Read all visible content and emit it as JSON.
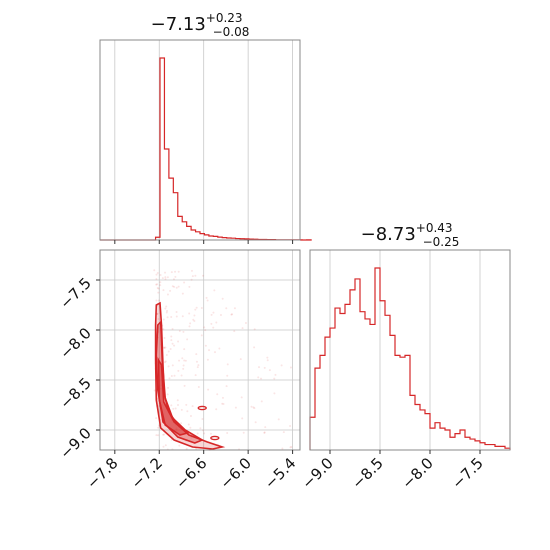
{
  "chart_data": [
    {
      "type": "histogram",
      "panel": "top-left",
      "title_value": "−7.13",
      "title_plus": "+0.23",
      "title_minus": "−0.08",
      "xlim": [
        -8.0,
        -5.3
      ],
      "bin_edges_start": -7.25,
      "bin_width": 0.06,
      "counts": [
        0.015,
        1.0,
        0.5,
        0.34,
        0.26,
        0.13,
        0.1,
        0.075,
        0.055,
        0.045,
        0.035,
        0.028,
        0.022,
        0.02,
        0.016,
        0.013,
        0.011,
        0.01,
        0.008,
        0.007,
        0.006,
        0.005,
        0.004,
        0.003,
        0.003,
        0.002,
        0.002,
        0.001,
        0.001,
        0.001,
        0.001,
        0.001,
        0.001,
        0.0,
        0.001
      ],
      "color": "#d62728"
    },
    {
      "type": "histogram",
      "panel": "bottom-right",
      "title_value": "−8.73",
      "title_plus": "+0.43",
      "title_minus": "−0.25",
      "xlim": [
        -9.2,
        -7.2
      ],
      "xticks": [
        "−9.0",
        "−8.5",
        "−8.0",
        "−7.5"
      ],
      "xtick_values": [
        -9.0,
        -8.5,
        -8.0,
        -7.5
      ],
      "bin_edges_start": -9.2,
      "bin_width": 0.05,
      "counts": [
        0.18,
        0.45,
        0.52,
        0.62,
        0.67,
        0.78,
        0.75,
        0.8,
        0.88,
        0.94,
        0.76,
        0.72,
        0.69,
        1.0,
        0.82,
        0.74,
        0.63,
        0.52,
        0.51,
        0.52,
        0.3,
        0.25,
        0.22,
        0.2,
        0.12,
        0.15,
        0.12,
        0.11,
        0.07,
        0.09,
        0.11,
        0.07,
        0.06,
        0.05,
        0.04,
        0.03,
        0.03,
        0.02,
        0.02,
        0.01
      ],
      "color": "#d62728"
    },
    {
      "type": "scatter",
      "panel": "bottom-left",
      "xlim": [
        -8.0,
        -5.3
      ],
      "ylim": [
        -9.2,
        -7.2
      ],
      "xticks": [
        "−7.8",
        "−7.2",
        "−6.6",
        "−6.0",
        "−5.4"
      ],
      "xtick_values": [
        -7.8,
        -7.2,
        -6.6,
        -6.0,
        -5.4
      ],
      "yticks": [
        "−7.5",
        "−8.0",
        "−8.5",
        "−9.0"
      ],
      "ytick_values": [
        -7.5,
        -8.0,
        -8.5,
        -9.0
      ],
      "contours": [
        [
          [
            -7.24,
            -7.75
          ],
          [
            -7.19,
            -7.73
          ],
          [
            -7.17,
            -7.95
          ],
          [
            -7.15,
            -8.35
          ],
          [
            -7.13,
            -8.65
          ],
          [
            -7.07,
            -8.82
          ],
          [
            -6.95,
            -8.95
          ],
          [
            -6.8,
            -9.05
          ],
          [
            -6.55,
            -9.12
          ],
          [
            -6.35,
            -9.17
          ],
          [
            -6.48,
            -9.19
          ],
          [
            -6.75,
            -9.17
          ],
          [
            -7.0,
            -9.1
          ],
          [
            -7.18,
            -8.98
          ],
          [
            -7.24,
            -8.7
          ],
          [
            -7.25,
            -8.3
          ],
          [
            -7.25,
            -7.95
          ]
        ],
        [
          [
            -7.22,
            -7.95
          ],
          [
            -7.18,
            -7.92
          ],
          [
            -7.16,
            -8.3
          ],
          [
            -7.12,
            -8.68
          ],
          [
            -7.02,
            -8.88
          ],
          [
            -6.85,
            -9.0
          ],
          [
            -6.62,
            -9.1
          ],
          [
            -6.72,
            -9.13
          ],
          [
            -6.95,
            -9.07
          ],
          [
            -7.15,
            -8.92
          ],
          [
            -7.22,
            -8.6
          ],
          [
            -7.24,
            -8.25
          ]
        ],
        [
          [
            -7.21,
            -8.3
          ],
          [
            -7.17,
            -8.35
          ],
          [
            -7.14,
            -8.72
          ],
          [
            -7.0,
            -8.92
          ],
          [
            -6.82,
            -9.03
          ],
          [
            -6.92,
            -9.05
          ],
          [
            -7.12,
            -8.95
          ],
          [
            -7.2,
            -8.7
          ]
        ]
      ],
      "color": "#d62728"
    }
  ]
}
